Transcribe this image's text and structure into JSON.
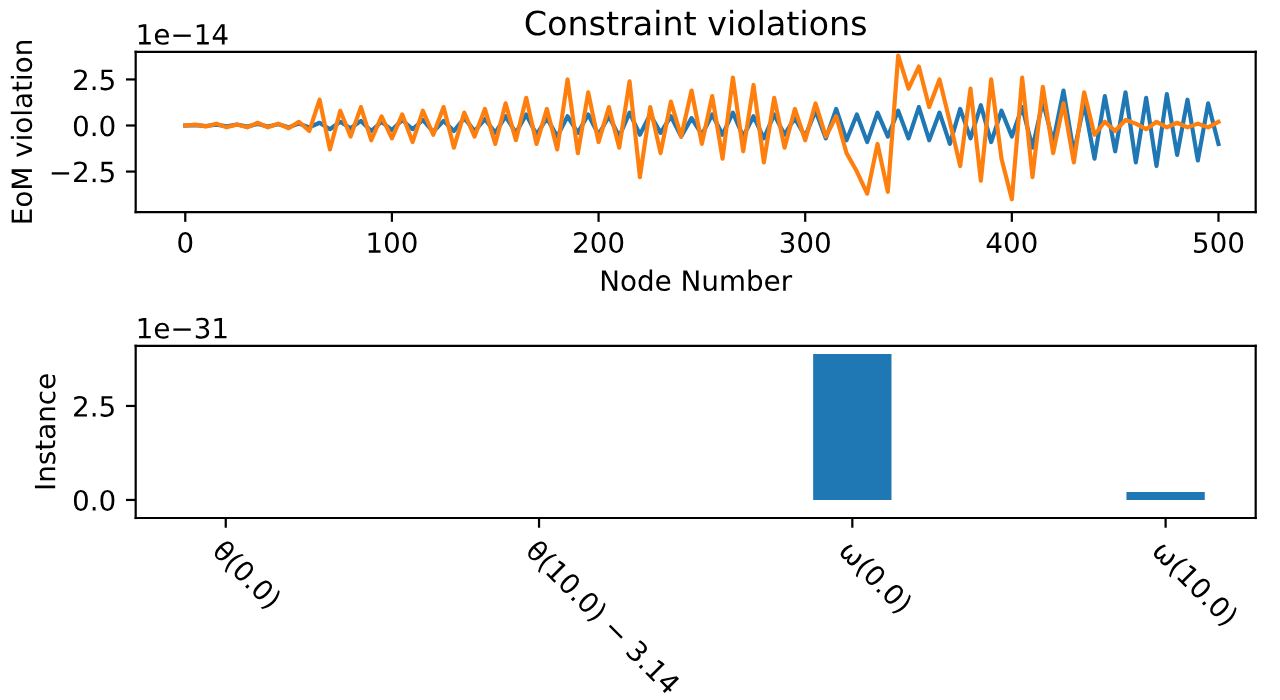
{
  "chart_data": [
    {
      "type": "line",
      "title": "Constraint violations",
      "xlabel": "Node Number",
      "ylabel": "EoM violation",
      "annotations": [
        "1e−14"
      ],
      "xlim": [
        -24,
        518
      ],
      "xticks": [
        0,
        100,
        200,
        300,
        400,
        500
      ],
      "ylim": [
        -4.7,
        4.0
      ],
      "yticks": [
        {
          "value": -2.5,
          "label": "−2.5"
        },
        {
          "value": 0,
          "label": "0.0"
        },
        {
          "value": 2.5,
          "label": "2.5"
        }
      ],
      "x": [
        0,
        5,
        10,
        15,
        20,
        25,
        30,
        35,
        40,
        45,
        50,
        55,
        60,
        65,
        70,
        75,
        80,
        85,
        90,
        95,
        100,
        105,
        110,
        115,
        120,
        125,
        130,
        135,
        140,
        145,
        150,
        155,
        160,
        165,
        170,
        175,
        180,
        185,
        190,
        195,
        200,
        205,
        210,
        215,
        220,
        225,
        230,
        235,
        240,
        245,
        250,
        255,
        260,
        265,
        270,
        275,
        280,
        285,
        290,
        295,
        300,
        305,
        310,
        315,
        320,
        325,
        330,
        335,
        340,
        345,
        350,
        355,
        360,
        365,
        370,
        375,
        380,
        385,
        390,
        395,
        400,
        405,
        410,
        415,
        420,
        425,
        430,
        435,
        440,
        445,
        450,
        455,
        460,
        465,
        470,
        475,
        480,
        485,
        490,
        495,
        500
      ],
      "series": [
        {
          "color": "#1f77b4",
          "values": [
            0,
            0.02,
            -0.03,
            0.05,
            -0.04,
            0.05,
            -0.06,
            0.08,
            -0.05,
            0.07,
            -0.1,
            0.1,
            -0.1,
            0.15,
            -0.2,
            0.2,
            -0.15,
            0.25,
            -0.3,
            0.2,
            -0.25,
            0.3,
            -0.2,
            0.3,
            -0.35,
            0.25,
            -0.3,
            0.4,
            -0.3,
            0.35,
            -0.4,
            0.5,
            -0.4,
            0.6,
            -0.5,
            0.4,
            -0.6,
            0.5,
            -0.4,
            0.6,
            -0.5,
            0.5,
            -0.6,
            0.7,
            -0.5,
            0.6,
            -0.4,
            0.5,
            -0.6,
            0.4,
            -0.5,
            0.6,
            -0.5,
            0.7,
            -0.6,
            0.5,
            -0.7,
            0.6,
            -0.5,
            0.4,
            -0.6,
            0.8,
            -0.7,
            0.9,
            -0.8,
            0.6,
            -0.9,
            0.7,
            -0.6,
            0.8,
            -0.7,
            1.0,
            -0.8,
            0.7,
            -1.0,
            0.9,
            -0.7,
            1.1,
            -0.9,
            0.8,
            -0.6,
            1.0,
            -1.2,
            1.3,
            -0.9,
            1.9,
            -1.5,
            1.2,
            -1.8,
            1.6,
            -1.4,
            1.8,
            -2.0,
            1.5,
            -2.2,
            1.7,
            -1.6,
            1.4,
            -1.9,
            1.2,
            -1.0
          ]
        },
        {
          "color": "#ff7f0e",
          "values": [
            0,
            0.05,
            -0.05,
            0.1,
            -0.1,
            0.05,
            -0.1,
            0.15,
            -0.1,
            0.1,
            -0.15,
            0.2,
            -0.3,
            1.4,
            -1.3,
            0.8,
            -0.6,
            1.0,
            -0.8,
            0.5,
            -0.7,
            0.6,
            -0.9,
            0.8,
            -0.5,
            1.0,
            -1.2,
            0.7,
            -0.6,
            0.9,
            -1.0,
            1.2,
            -0.8,
            1.5,
            -1.0,
            0.9,
            -1.3,
            2.5,
            -1.5,
            1.8,
            -0.9,
            1.0,
            -1.2,
            2.4,
            -2.8,
            1.0,
            -1.5,
            1.3,
            -0.6,
            1.9,
            -1.0,
            1.6,
            -1.8,
            2.6,
            -1.4,
            2.2,
            -2.0,
            1.5,
            -1.2,
            0.9,
            -0.8,
            1.2,
            -0.6,
            0.5,
            -1.5,
            -2.5,
            -3.7,
            -1.0,
            -3.6,
            3.8,
            2.0,
            3.2,
            1.0,
            2.5,
            0.2,
            -2.2,
            2.0,
            -3.0,
            2.5,
            -1.8,
            -4.0,
            2.6,
            -2.8,
            2.1,
            -1.5,
            1.2,
            -2.0,
            1.8,
            -0.5,
            0.2,
            -0.3,
            0.3,
            0.1,
            -0.2,
            0.2,
            -0.1,
            0.15,
            -0.1,
            0.1,
            -0.1,
            0.2
          ]
        }
      ]
    },
    {
      "type": "bar",
      "ylabel": "Instance",
      "annotations": [
        "1e−31"
      ],
      "categories": [
        "θ(0.0)",
        "θ(10.0) − 3.14",
        "ω(0.0)",
        "ω(10.0)"
      ],
      "values": [
        0,
        0,
        3.88,
        0.21
      ],
      "color": "#1f77b4",
      "ylim": [
        -0.48,
        4.1
      ],
      "yticks": [
        {
          "value": 0,
          "label": "0.0"
        },
        {
          "value": 2.5,
          "label": "2.5"
        }
      ]
    }
  ]
}
